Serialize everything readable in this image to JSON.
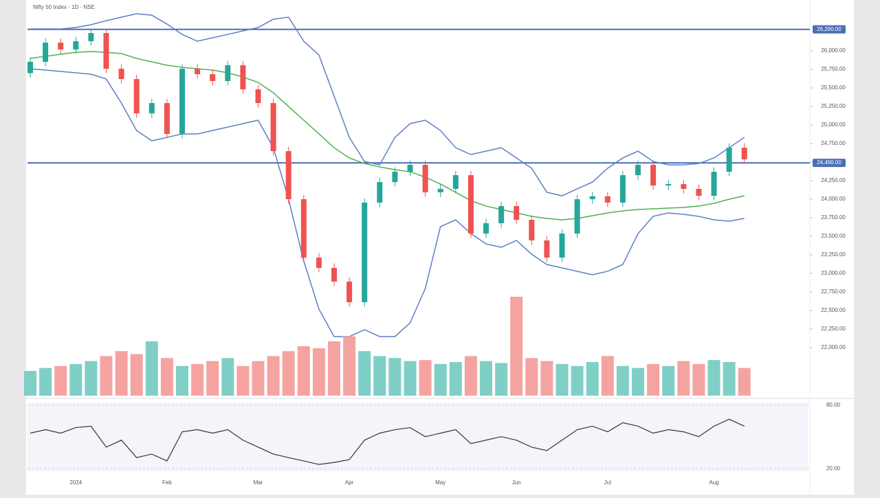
{
  "chart_data": [
    {
      "type": "candlestick",
      "title": "Nifty 50 Index · 1D · NSE",
      "categories": [
        null,
        null,
        null,
        "2024",
        null,
        null,
        null,
        null,
        null,
        "Feb",
        null,
        null,
        null,
        null,
        null,
        "Mar",
        null,
        null,
        null,
        null,
        null,
        "Apr",
        null,
        null,
        null,
        null,
        null,
        "May",
        null,
        null,
        null,
        null,
        "Jun",
        null,
        null,
        null,
        null,
        null,
        "Jul",
        null,
        null,
        null,
        null,
        null,
        null,
        "Aug",
        null,
        null
      ],
      "open": [
        25700,
        25852,
        26111,
        26018,
        26130,
        26240,
        25759,
        25620,
        25157,
        25296,
        24880,
        25759,
        25685,
        25593,
        25806,
        25481,
        25296,
        24648,
        24000,
        23213,
        23074,
        22889,
        22611,
        23954,
        24231,
        24370,
        24463,
        24093,
        24139,
        24324,
        23537,
        23676,
        23907,
        23722,
        23444,
        23213,
        23537,
        24000,
        24040,
        23954,
        24324,
        24463,
        24185,
        24204,
        24139,
        24046,
        24370,
        24694
      ],
      "high": [
        25912,
        26171,
        26171,
        26190,
        26300,
        26300,
        25819,
        25680,
        25356,
        25356,
        25819,
        25819,
        25745,
        25866,
        25866,
        25541,
        25356,
        24708,
        24060,
        23273,
        23134,
        22949,
        24014,
        24291,
        24430,
        24523,
        24523,
        24199,
        24384,
        24384,
        23736,
        23967,
        23967,
        23782,
        23504,
        23597,
        24060,
        24100,
        24100,
        24384,
        24523,
        24523,
        24264,
        24264,
        24199,
        24430,
        24754,
        24754
      ],
      "low": [
        25640,
        25792,
        25958,
        25958,
        26070,
        25699,
        25560,
        25097,
        25097,
        24820,
        24820,
        25625,
        25533,
        25533,
        25421,
        25236,
        24588,
        23940,
        23153,
        23014,
        22829,
        22551,
        22551,
        23894,
        24171,
        24310,
        24033,
        24033,
        24079,
        23477,
        23477,
        23616,
        23662,
        23384,
        23153,
        23153,
        23477,
        23940,
        23894,
        23894,
        24264,
        24125,
        24125,
        24079,
        23986,
        23986,
        24310,
        24477
      ],
      "close": [
        25852,
        26111,
        26018,
        26130,
        26240,
        25759,
        25620,
        25157,
        25296,
        24880,
        25759,
        25685,
        25593,
        25806,
        25481,
        25296,
        24648,
        24000,
        23213,
        23074,
        22889,
        22611,
        23954,
        24231,
        24370,
        24463,
        24093,
        24139,
        24324,
        23537,
        23676,
        23907,
        23722,
        23444,
        23213,
        23537,
        24000,
        24040,
        23954,
        24324,
        24463,
        24185,
        24204,
        24139,
        24046,
        24370,
        24694,
        24537
      ],
      "up_color": "#26a69a",
      "down_color": "#ef5350",
      "series": [
        {
          "color": "#5b7fc4",
          "values": [
            26296,
            26296,
            26296,
            26315,
            26352,
            26407,
            26454,
            26500,
            26481,
            26361,
            26222,
            26130,
            26176,
            26222,
            26269,
            26315,
            26426,
            26454,
            26130,
            25944,
            25389,
            24833,
            24509,
            24463,
            24833,
            25019,
            25065,
            24926,
            24694,
            24602,
            24648,
            24694,
            24556,
            24417,
            24093,
            24046,
            24139,
            24231,
            24417,
            24556,
            24648,
            24509,
            24463,
            24463,
            24481,
            24556,
            24694,
            24833
          ]
        },
        {
          "color": "#5b7fc4",
          "values": [
            25759,
            25741,
            25722,
            25704,
            25685,
            25620,
            25296,
            24926,
            24787,
            24833,
            24880,
            24880,
            24926,
            24972,
            25019,
            25065,
            24694,
            24000,
            23167,
            22519,
            22148,
            22148,
            22241,
            22148,
            22148,
            22333,
            22796,
            23630,
            23722,
            23537,
            23398,
            23352,
            23444,
            23259,
            23120,
            23074,
            23028,
            22981,
            23028,
            23120,
            23537,
            23769,
            23815,
            23796,
            23769,
            23722,
            23704,
            23741
          ]
        },
        {
          "color": "#4caf50",
          "values": [
            25898,
            25926,
            25954,
            25981,
            25991,
            25981,
            25963,
            25898,
            25852,
            25806,
            25778,
            25759,
            25741,
            25704,
            25648,
            25574,
            25435,
            25250,
            25065,
            24880,
            24694,
            24556,
            24481,
            24435,
            24398,
            24370,
            24296,
            24204,
            24093,
            23981,
            23907,
            23861,
            23815,
            23769,
            23741,
            23722,
            23741,
            23778,
            23815,
            23843,
            23861,
            23870,
            23880,
            23889,
            23907,
            23944,
            24000,
            24046
          ]
        }
      ],
      "ref_lines": [
        {
          "value": 26290,
          "label": "26,290.00",
          "color": "#4a6fb8"
        },
        {
          "value": 24490,
          "label": "24,490.00",
          "color": "#4a6fb8"
        }
      ],
      "ylim": [
        21333,
        26593
      ],
      "yticks": [
        {
          "value": 22000,
          "label": "22,000.00"
        },
        {
          "value": 22250,
          "label": "22,250.00"
        },
        {
          "value": 22500,
          "label": "22,500.00"
        },
        {
          "value": 22750,
          "label": "22,750.00"
        },
        {
          "value": 23000,
          "label": "23,000.00"
        },
        {
          "value": 23250,
          "label": "23,250.00"
        },
        {
          "value": 23500,
          "label": "23,500.00"
        },
        {
          "value": 23750,
          "label": "23,750.00"
        },
        {
          "value": 24000,
          "label": "24,000.00"
        },
        {
          "value": 24250,
          "label": "24,250.00"
        },
        {
          "value": 24500,
          "label": "24,500.00"
        },
        {
          "value": 24750,
          "label": "24,750.00"
        },
        {
          "value": 25000,
          "label": "25,000.00"
        },
        {
          "value": 25250,
          "label": "25,250.00"
        },
        {
          "value": 25500,
          "label": "25,500.00"
        },
        {
          "value": 25750,
          "label": "25,750.00"
        },
        {
          "value": 26000,
          "label": "26,000.00"
        }
      ]
    },
    {
      "type": "bar",
      "values": [
        25,
        28,
        30,
        32,
        35,
        40,
        45,
        42,
        55,
        38,
        30,
        32,
        35,
        38,
        30,
        35,
        40,
        45,
        50,
        48,
        55,
        60,
        45,
        40,
        38,
        35,
        36,
        32,
        34,
        40,
        35,
        33,
        100,
        38,
        35,
        32,
        30,
        34,
        40,
        30,
        28,
        32,
        30,
        35,
        32,
        36,
        34,
        28
      ],
      "up_color": "#7fcfc7",
      "down_color": "#f5a3a1",
      "ylim": [
        0,
        100
      ]
    },
    {
      "type": "line",
      "values": [
        53.6,
        56.9,
        53.6,
        58.9,
        60.2,
        40.4,
        47.0,
        30.5,
        33.8,
        27.3,
        54.9,
        56.9,
        53.6,
        56.9,
        47.0,
        40.4,
        33.8,
        30.5,
        27.3,
        24.0,
        25.9,
        28.6,
        47.0,
        53.6,
        56.9,
        58.9,
        50.3,
        53.6,
        56.9,
        43.7,
        47.0,
        50.3,
        47.0,
        40.4,
        37.1,
        47.0,
        56.9,
        60.2,
        54.9,
        63.5,
        60.2,
        53.6,
        56.9,
        54.9,
        50.3,
        60.2,
        66.8,
        60.2
      ],
      "color": "#333333",
      "ylim": [
        15,
        80
      ],
      "yticks": [
        {
          "value": 20,
          "label": "20.00"
        },
        {
          "value": 80,
          "label": "80.00"
        }
      ]
    }
  ]
}
